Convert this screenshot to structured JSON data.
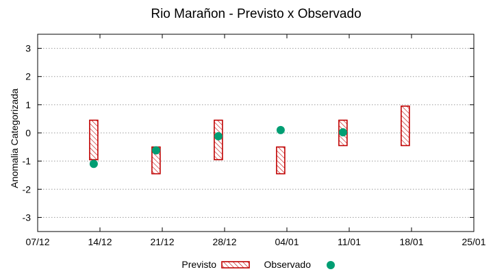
{
  "chart_data": {
    "type": "range-bar-scatter",
    "title": "Rio Marañon - Previsto x Observado",
    "xlabel": "",
    "ylabel": "Anomalia Categorizada",
    "x_ticks": [
      "07/12",
      "14/12",
      "21/12",
      "28/12",
      "04/01",
      "11/01",
      "18/01",
      "25/01"
    ],
    "xlim": [
      0,
      7
    ],
    "ylim": [
      -3.5,
      3.5
    ],
    "y_ticks": [
      -3,
      -2,
      -1,
      0,
      1,
      2,
      3
    ],
    "grid": true,
    "legend": {
      "placement": "bottom-center",
      "entries": [
        {
          "label": "Previsto",
          "kind": "hatched-box"
        },
        {
          "label": "Observado",
          "kind": "dot"
        }
      ]
    },
    "series": [
      {
        "name": "Previsto",
        "kind": "range",
        "points": [
          {
            "x": 0.9,
            "low": -0.95,
            "high": 0.45
          },
          {
            "x": 1.9,
            "low": -1.45,
            "high": -0.5
          },
          {
            "x": 2.9,
            "low": -0.95,
            "high": 0.45
          },
          {
            "x": 3.9,
            "low": -1.45,
            "high": -0.5
          },
          {
            "x": 4.9,
            "low": -0.45,
            "high": 0.45
          },
          {
            "x": 5.9,
            "low": -0.45,
            "high": 0.95
          }
        ]
      },
      {
        "name": "Observado",
        "kind": "point",
        "points": [
          {
            "x": 0.9,
            "y": -1.1
          },
          {
            "x": 1.9,
            "y": -0.62
          },
          {
            "x": 2.9,
            "y": -0.12
          },
          {
            "x": 3.9,
            "y": 0.1
          },
          {
            "x": 4.9,
            "y": 0.02
          }
        ]
      }
    ],
    "colors": {
      "forecast": "#c00000",
      "observed": "#009e73",
      "grid": "#9a9a9a"
    }
  }
}
